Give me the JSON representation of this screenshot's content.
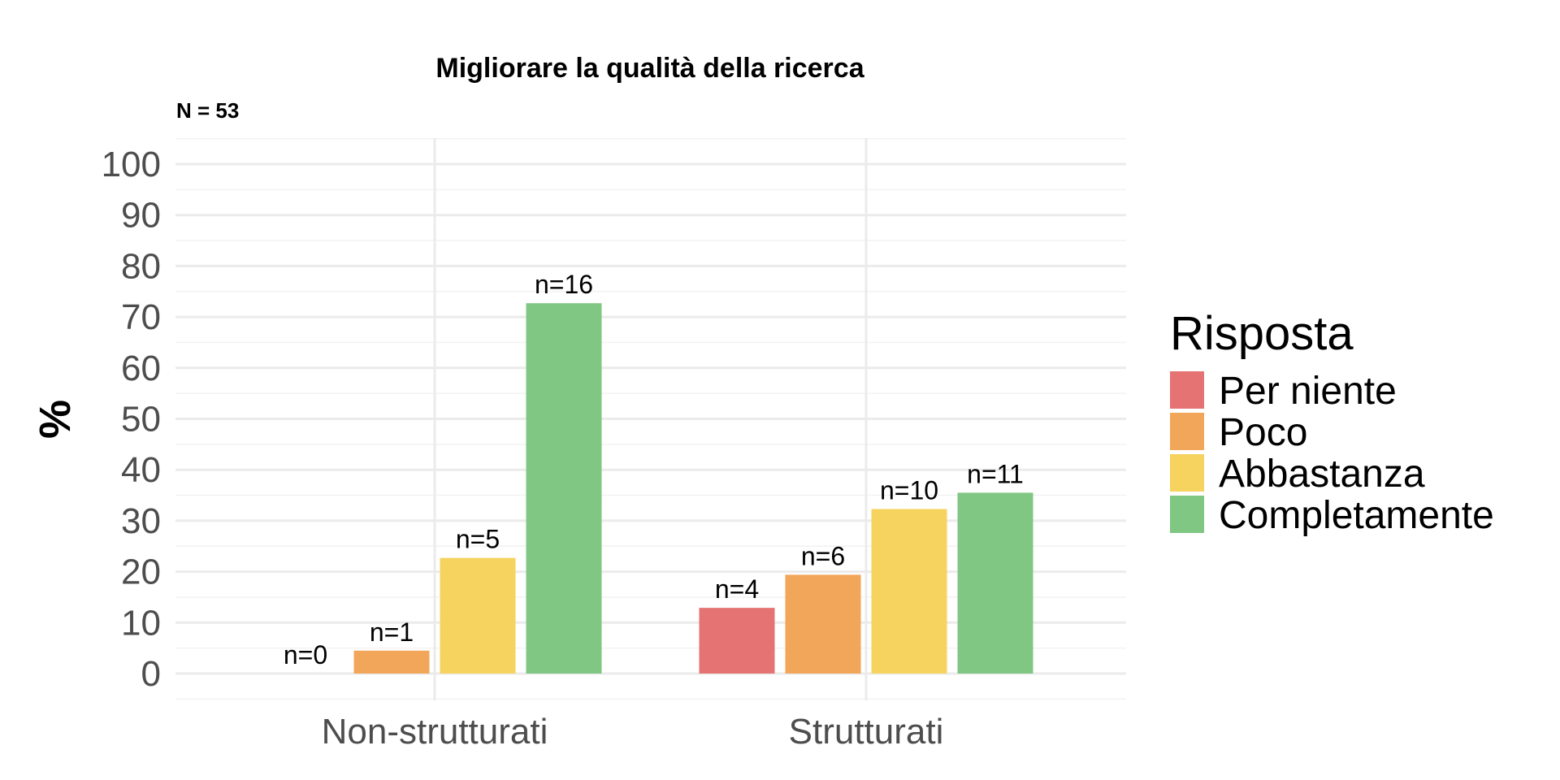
{
  "chart_data": {
    "type": "bar",
    "title": "Migliorare la qualità della ricerca",
    "subtitle": "N = 53",
    "xlabel": "",
    "ylabel": "%",
    "ylim": [
      0,
      105
    ],
    "yticks": [
      0,
      10,
      20,
      30,
      40,
      50,
      60,
      70,
      80,
      90,
      100
    ],
    "categories": [
      "Non-strutturati",
      "Strutturati"
    ],
    "series": [
      {
        "name": "Per niente",
        "color": "#e57373",
        "values": [
          0,
          12.9
        ],
        "labels": [
          "n=0",
          "n=4"
        ]
      },
      {
        "name": "Poco",
        "color": "#f2a65a",
        "values": [
          4.5,
          19.4
        ],
        "labels": [
          "n=1",
          "n=6"
        ]
      },
      {
        "name": "Abbastanza",
        "color": "#f5d35e",
        "values": [
          22.7,
          32.3
        ],
        "labels": [
          "n=5",
          "n=10"
        ]
      },
      {
        "name": "Completamente",
        "color": "#81c784",
        "values": [
          72.7,
          35.5
        ],
        "labels": [
          "n=16",
          "n=11"
        ]
      }
    ],
    "legend": {
      "title": "Risposta",
      "position": "right"
    },
    "grid": true
  }
}
